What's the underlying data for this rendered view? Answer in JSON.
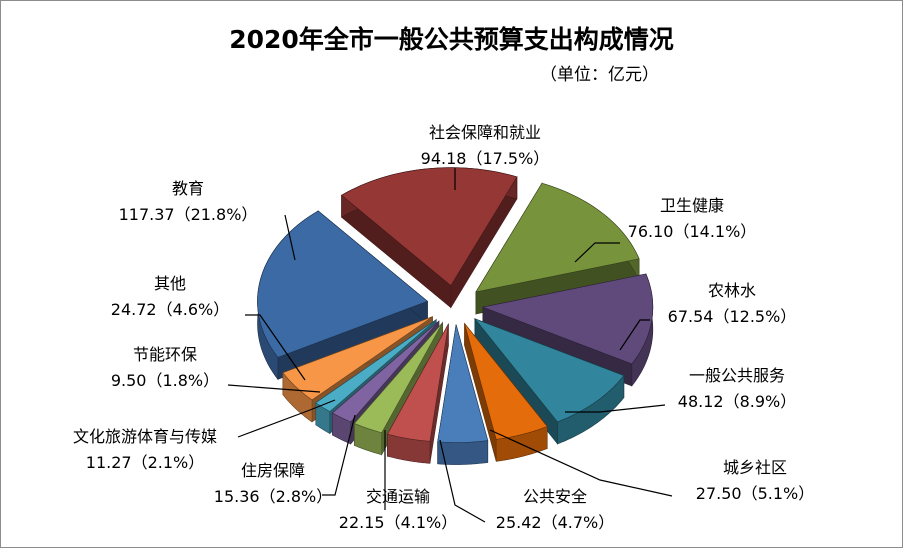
{
  "chart_data": {
    "type": "pie",
    "style": "3d-exploded",
    "title": "2020年全市一般公共预算支出构成情况",
    "unit": "（单位：亿元）",
    "slices": [
      {
        "name": "社会保障和就业",
        "value": 94.18,
        "pct": "17.5%",
        "color": "#953735"
      },
      {
        "name": "卫生健康",
        "value": 76.1,
        "pct": "14.1%",
        "color": "#77933c"
      },
      {
        "name": "农林水",
        "value": 67.54,
        "pct": "12.5%",
        "color": "#604a7b"
      },
      {
        "name": "一般公共服务",
        "value": 48.12,
        "pct": "8.9%",
        "color": "#31859c"
      },
      {
        "name": "城乡社区",
        "value": 27.5,
        "pct": "5.1%",
        "color": "#e46c0a"
      },
      {
        "name": "公共安全",
        "value": 25.42,
        "pct": "4.7%",
        "color": "#4a7ebb"
      },
      {
        "name": "交通运输",
        "value": 22.15,
        "pct": "4.1%",
        "color": "#c0504d"
      },
      {
        "name": "住房保障",
        "value": 15.36,
        "pct": "2.8%",
        "color": "#9bbb59"
      },
      {
        "name": "文化旅游体育与传媒",
        "value": 11.27,
        "pct": "2.1%",
        "color": "#8064a2"
      },
      {
        "name": "节能环保",
        "value": 9.5,
        "pct": "1.8%",
        "color": "#4bacc6"
      },
      {
        "name": "其他",
        "value": 24.72,
        "pct": "4.6%",
        "color": "#f79646"
      },
      {
        "name": "教育",
        "value": 117.37,
        "pct": "21.8%",
        "color": "#3c6aa5"
      }
    ]
  }
}
